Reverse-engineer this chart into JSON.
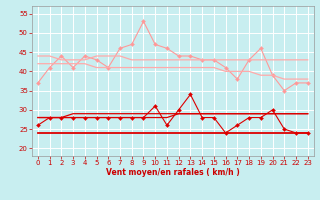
{
  "x": [
    0,
    1,
    2,
    3,
    4,
    5,
    6,
    7,
    8,
    9,
    10,
    11,
    12,
    13,
    14,
    15,
    16,
    17,
    18,
    19,
    20,
    21,
    22,
    23
  ],
  "rafales_line": [
    37,
    41,
    44,
    41,
    44,
    43,
    41,
    46,
    47,
    53,
    47,
    46,
    44,
    44,
    43,
    43,
    41,
    38,
    43,
    46,
    39,
    35,
    37,
    37
  ],
  "moy_upper_line": [
    44,
    44,
    43,
    43,
    43,
    44,
    44,
    44,
    43,
    43,
    43,
    43,
    43,
    43,
    43,
    43,
    43,
    43,
    43,
    43,
    43,
    43,
    43,
    43
  ],
  "moy_lower_line": [
    42,
    42,
    42,
    42,
    42,
    41,
    41,
    41,
    41,
    41,
    41,
    41,
    41,
    41,
    41,
    41,
    40,
    40,
    40,
    39,
    39,
    38,
    38,
    38
  ],
  "wind_line": [
    26,
    28,
    28,
    28,
    28,
    28,
    28,
    28,
    28,
    28,
    31,
    26,
    30,
    34,
    28,
    28,
    24,
    26,
    28,
    28,
    30,
    25,
    24,
    24
  ],
  "wind_upper_line": [
    28,
    28,
    28,
    29,
    29,
    29,
    29,
    29,
    29,
    29,
    29,
    29,
    29,
    29,
    29,
    29,
    29,
    29,
    29,
    29,
    29,
    29,
    29,
    29
  ],
  "wind_mid_line": [
    28,
    28,
    28,
    28,
    28,
    28,
    28,
    28,
    28,
    28,
    28,
    28,
    29,
    29,
    29,
    29,
    29,
    29,
    29,
    29,
    29,
    29,
    29,
    29
  ],
  "wind_lower_line": [
    24,
    24,
    24,
    24,
    24,
    24,
    24,
    24,
    24,
    24,
    24,
    24,
    24,
    24,
    24,
    24,
    24,
    24,
    24,
    24,
    24,
    24,
    24,
    24
  ],
  "bg_color": "#c8eef0",
  "grid_color": "#ffffff",
  "rafales_color": "#ff9999",
  "moy_color": "#ffaaaa",
  "wind_color": "#dd0000",
  "xlabel": "Vent moyen/en rafales ( km/h )",
  "xlabel_color": "#cc0000",
  "yticks": [
    20,
    25,
    30,
    35,
    40,
    45,
    50,
    55
  ],
  "ylim": [
    18,
    57
  ],
  "xlim": [
    -0.5,
    23.5
  ]
}
